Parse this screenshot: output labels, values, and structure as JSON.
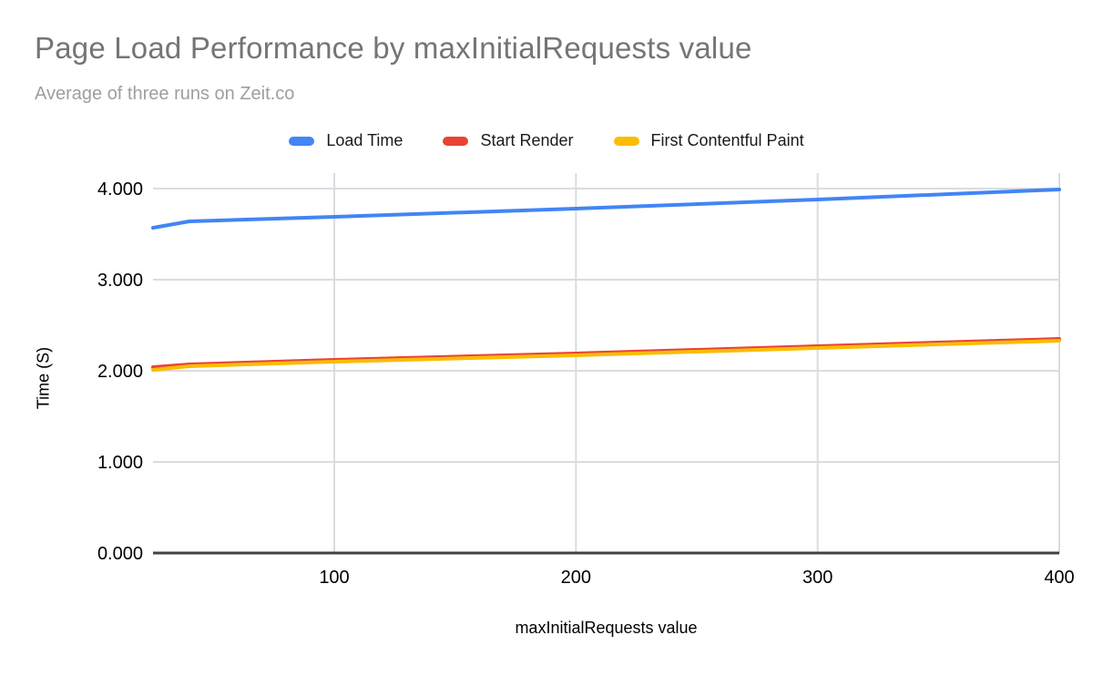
{
  "chart": {
    "title": "Page Load Performance by maxInitialRequests value",
    "subtitle": "Average of three runs on Zeit.co"
  },
  "legend": {
    "items": [
      {
        "label": "Load Time",
        "color": "#4285f4"
      },
      {
        "label": "Start Render",
        "color": "#ea4335"
      },
      {
        "label": "First Contentful Paint",
        "color": "#fbbc04"
      }
    ]
  },
  "chart_data": {
    "type": "line",
    "title": "Page Load Performance by maxInitialRequests value",
    "subtitle": "Average of three runs on Zeit.co",
    "xlabel": "maxInitialRequests value",
    "ylabel": "Time (S)",
    "x": [
      25,
      40,
      100,
      200,
      300,
      400
    ],
    "series": [
      {
        "name": "Load Time",
        "color": "#4285f4",
        "values": [
          3.57,
          3.64,
          3.69,
          3.78,
          3.88,
          3.99
        ]
      },
      {
        "name": "Start Render",
        "color": "#ea4335",
        "values": [
          2.04,
          2.07,
          2.12,
          2.19,
          2.27,
          2.35
        ]
      },
      {
        "name": "First Contentful Paint",
        "color": "#fbbc04",
        "values": [
          2.01,
          2.05,
          2.1,
          2.17,
          2.25,
          2.33
        ]
      }
    ],
    "xlim": [
      25,
      400
    ],
    "ylim": [
      0,
      4.17
    ],
    "xticks": [
      100,
      200,
      300,
      400
    ],
    "xtick_labels": [
      "100",
      "200",
      "300",
      "400"
    ],
    "yticks": [
      0,
      1,
      2,
      3,
      4
    ],
    "ytick_labels": [
      "0.000",
      "1.000",
      "2.000",
      "3.000",
      "4.000"
    ],
    "grid": true,
    "legend_position": "top",
    "style": {
      "gridline_color": "#dadce0",
      "baseline_color": "#424242",
      "tick_label_color": "#000000",
      "line_width": 4
    }
  }
}
